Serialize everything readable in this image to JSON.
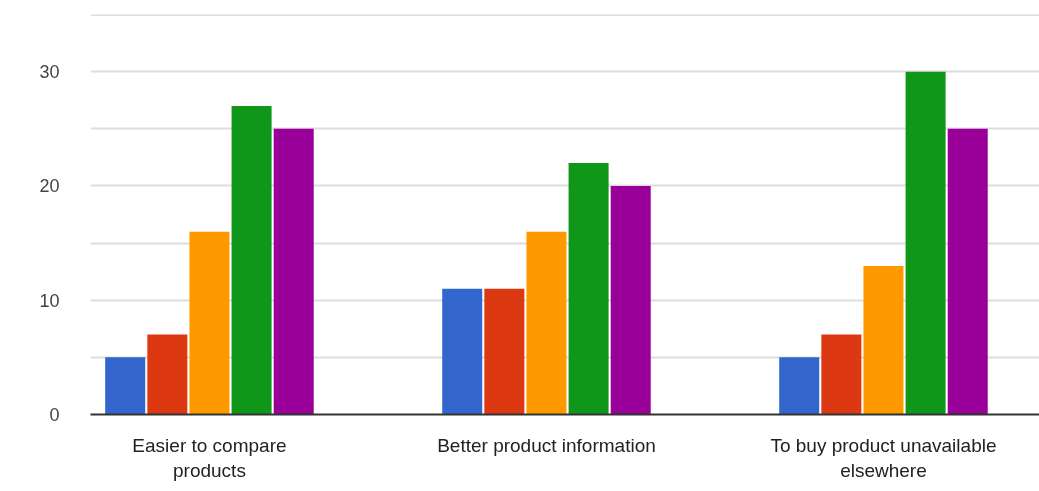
{
  "chart_data": {
    "type": "bar",
    "categories": [
      "Easier to compare\nproducts",
      "Better product information",
      "To buy product unavailable\nelsewhere"
    ],
    "series": [
      {
        "color": "#3366cc",
        "values": [
          5,
          11,
          5
        ]
      },
      {
        "color": "#dc3912",
        "values": [
          7,
          11,
          7
        ]
      },
      {
        "color": "#ff9900",
        "values": [
          16,
          16,
          13
        ]
      },
      {
        "color": "#109618",
        "values": [
          27,
          22,
          30
        ]
      },
      {
        "color": "#990099",
        "values": [
          25,
          20,
          25
        ]
      }
    ],
    "ylim": [
      0,
      35
    ],
    "yticks": [
      0,
      {
        "value": 5,
        "label": null
      },
      10,
      {
        "value": 15,
        "label": null
      },
      20,
      {
        "value": 25,
        "label": null
      },
      30,
      {
        "value": 35,
        "label": null
      }
    ],
    "grid": "y"
  }
}
